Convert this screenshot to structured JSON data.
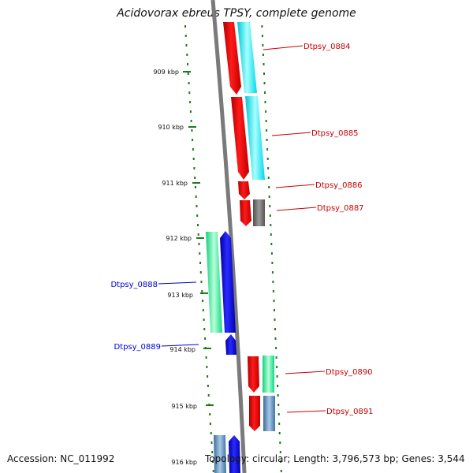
{
  "title": "Acidovorax ebreus TPSY, complete genome",
  "accession": "Accession: NC_011992",
  "topology": "Topology: circular; Length: 3,796,573 bp; Genes: 3,544",
  "colors": {
    "backbone": "#808080",
    "ruler": "#1e7a1e",
    "label_forward": "#cc0000",
    "label_reverse": "#0000cc"
  },
  "ruler": {
    "ticks": [
      "909 kbp",
      "910 kbp",
      "911 kbp",
      "912 kbp",
      "913 kbp",
      "914 kbp",
      "915 kbp",
      "916 kbp"
    ]
  },
  "genes": [
    {
      "label": "Dtpsy_0884",
      "color": "#ee0000",
      "strand": "+",
      "track": "outer"
    },
    {
      "label": "Dtpsy_0885",
      "color": "#ee0000",
      "strand": "+",
      "track": "outer"
    },
    {
      "label": "Dtpsy_0886",
      "color": "#ee0000",
      "strand": "+",
      "track": "outer"
    },
    {
      "label": "Dtpsy_0887",
      "color": "#ee0000",
      "strand": "+",
      "track": "outer"
    },
    {
      "label": "Dtpsy_0888",
      "color": "#0000ee",
      "strand": "-",
      "track": "inner"
    },
    {
      "label": "Dtpsy_0889",
      "color": "#0000ee",
      "strand": "-",
      "track": "inner"
    },
    {
      "label": "Dtpsy_0890",
      "color": "#ee0000",
      "strand": "+",
      "track": "outer"
    },
    {
      "label": "Dtpsy_0891",
      "color": "#ee0000",
      "strand": "+",
      "track": "outer"
    }
  ],
  "cog_colors": {
    "cyan": "#00e5f0",
    "green": "#19e68c",
    "grey": "#6e6e6e",
    "steel": "#4f86b5"
  }
}
